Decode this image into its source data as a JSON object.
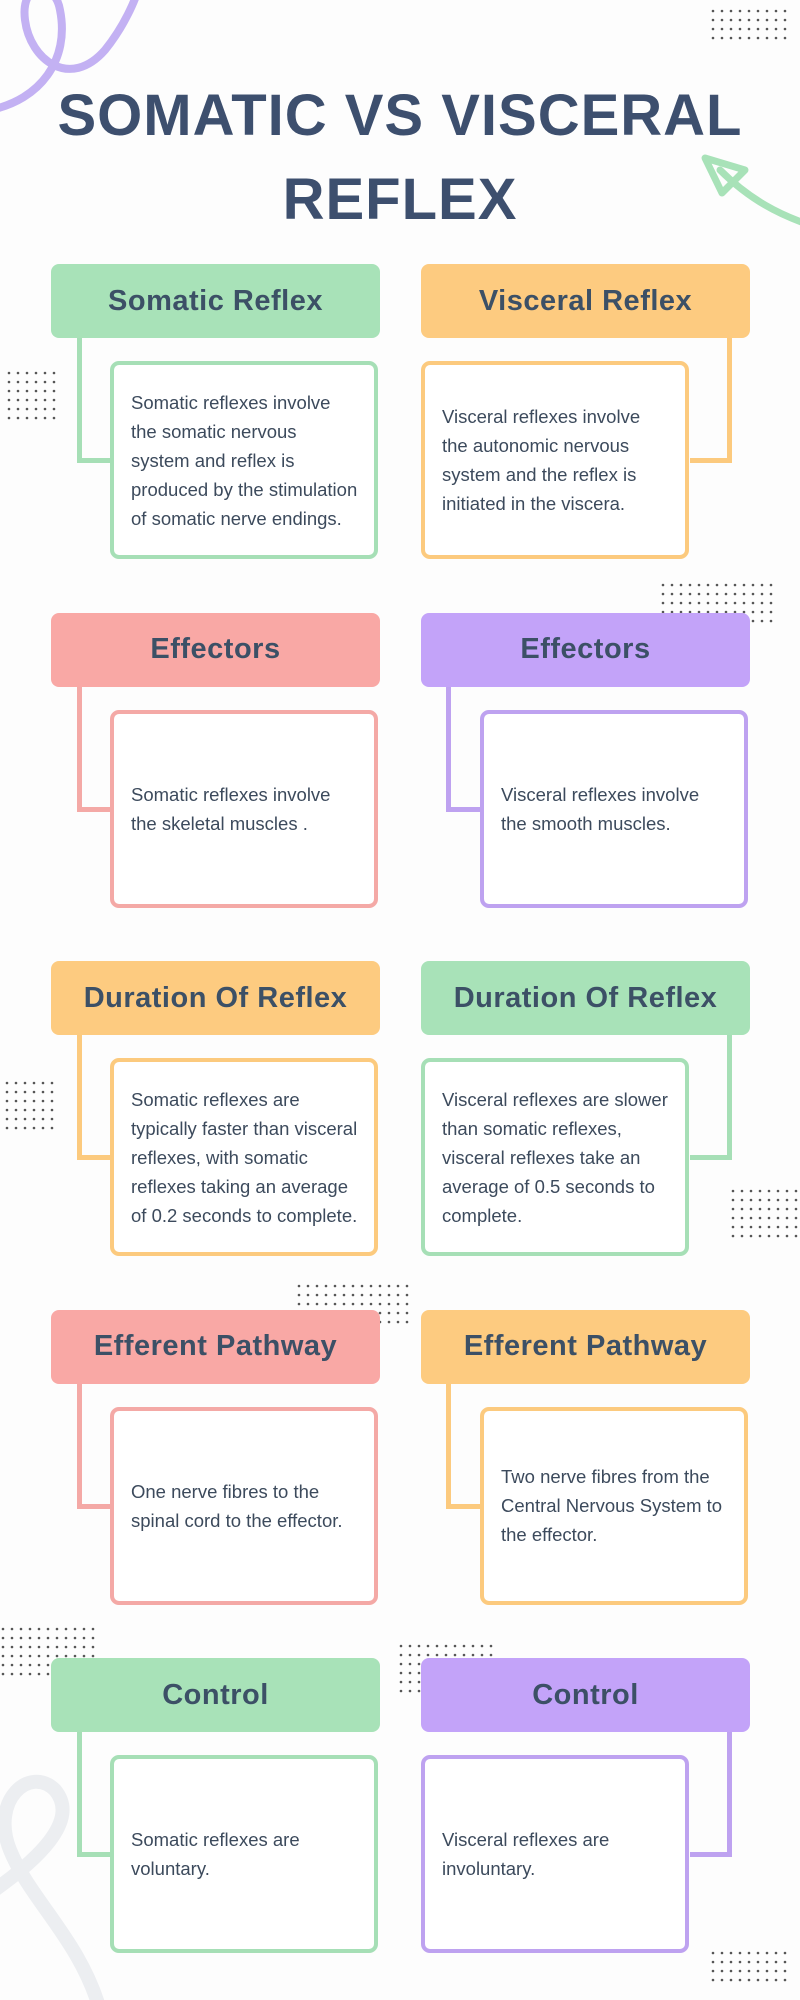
{
  "title": {
    "line1": "SOMATIC VS VISCERAL",
    "line2": "REFLEX"
  },
  "colors": {
    "title": "#3d4f6e",
    "green": "#a8e2b8",
    "orange": "#fdcb80",
    "pink": "#f9a8a5",
    "purple": "#c3a3f9"
  },
  "rows": [
    {
      "left": {
        "heading": "Somatic Reflex",
        "text": "Somatic reflexes involve the somatic nervous system and reflex is produced by the stimulation of somatic nerve endings.",
        "color": "green"
      },
      "right": {
        "heading": "Visceral Reflex",
        "text": "Visceral reflexes involve the autonomic nervous system and the reflex is initiated in the viscera.",
        "color": "orange"
      }
    },
    {
      "left": {
        "heading": "Effectors",
        "text": "Somatic reflexes involve the skeletal muscles .",
        "color": "pink"
      },
      "right": {
        "heading": "Effectors",
        "text": "Visceral reflexes involve the smooth muscles.",
        "color": "purple"
      }
    },
    {
      "left": {
        "heading": "Duration Of Reflex",
        "text": "Somatic reflexes are typically faster than visceral reflexes, with somatic reflexes taking an average of 0.2 seconds to complete.",
        "color": "orange"
      },
      "right": {
        "heading": "Duration Of Reflex",
        "text": "Visceral reflexes are slower than somatic reflexes, visceral reflexes take an average of 0.5 seconds to complete.",
        "color": "green"
      }
    },
    {
      "left": {
        "heading": "Efferent Pathway",
        "text": "One nerve fibres to the spinal cord to the effector.",
        "color": "pink"
      },
      "right": {
        "heading": "Efferent Pathway",
        "text": "Two nerve fibres from the Central Nervous System to the effector.",
        "color": "orange"
      }
    },
    {
      "left": {
        "heading": "Control",
        "text": "Somatic reflexes are voluntary.",
        "color": "green"
      },
      "right": {
        "heading": "Control",
        "text": "Visceral reflexes are involuntary.",
        "color": "purple"
      }
    }
  ]
}
